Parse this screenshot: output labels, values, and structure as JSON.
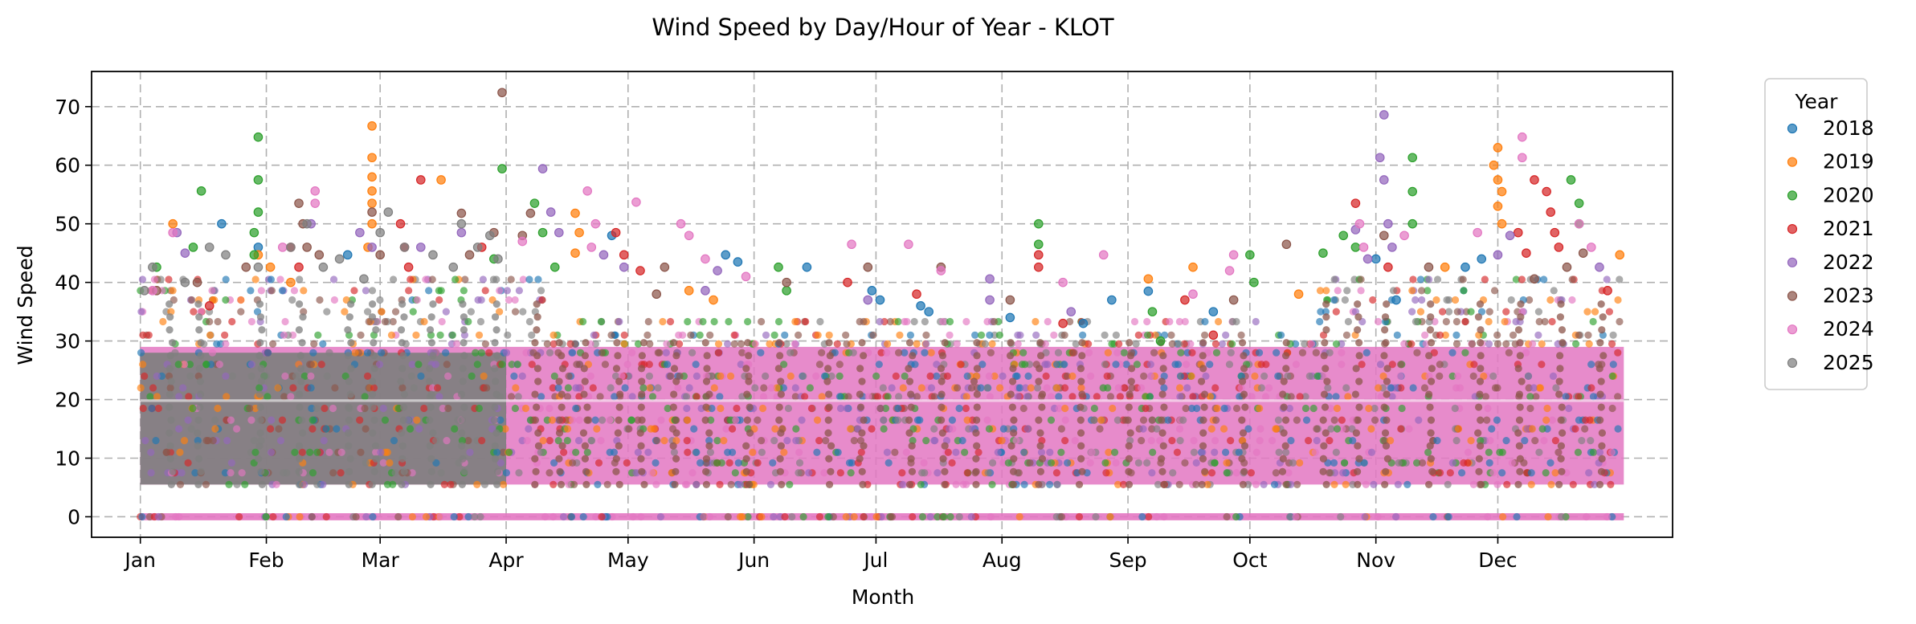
{
  "chart_data": {
    "type": "scatter",
    "title": "Wind Speed by Day/Hour of Year - KLOT",
    "xlabel": "Month",
    "ylabel": "Wind Speed",
    "x_axis": "day of year",
    "xlim": [
      -11,
      378
    ],
    "ylim": [
      -3.5,
      76
    ],
    "x_ticks": [
      {
        "label": "Jan",
        "day": 1
      },
      {
        "label": "Feb",
        "day": 32
      },
      {
        "label": "Mar",
        "day": 60
      },
      {
        "label": "Apr",
        "day": 91
      },
      {
        "label": "May",
        "day": 121
      },
      {
        "label": "Jun",
        "day": 152
      },
      {
        "label": "Jul",
        "day": 182
      },
      {
        "label": "Aug",
        "day": 213
      },
      {
        "label": "Sep",
        "day": 244
      },
      {
        "label": "Oct",
        "day": 274
      },
      {
        "label": "Nov",
        "day": 305
      },
      {
        "label": "Dec",
        "day": 335
      }
    ],
    "y_ticks": [
      0,
      10,
      20,
      30,
      40,
      50,
      60,
      70
    ],
    "grid": true,
    "legend": {
      "title": "Year",
      "position": "outside-right"
    },
    "series": [
      {
        "name": "2018",
        "color": "#1f77b4",
        "points": [
          [
            145,
            44.7
          ],
          [
            148,
            43.5
          ],
          [
            165,
            42.6
          ],
          [
            181,
            38.6
          ],
          [
            183,
            37.0
          ],
          [
            193,
            36.0
          ],
          [
            195,
            35.0
          ],
          [
            240,
            37.0
          ],
          [
            249,
            38.5
          ],
          [
            310,
            37.0
          ],
          [
            305,
            44.0
          ],
          [
            327,
            42.6
          ],
          [
            331,
            44.0
          ],
          [
            52,
            44.7
          ],
          [
            21,
            50.0
          ],
          [
            30,
            46.0
          ],
          [
            117,
            48.0
          ],
          [
            265,
            35.0
          ],
          [
            233,
            33.0
          ],
          [
            215,
            34.0
          ]
        ]
      },
      {
        "name": "2019",
        "color": "#ff7f0e",
        "points": [
          [
            58,
            66.7
          ],
          [
            58,
            61.3
          ],
          [
            58,
            58.0
          ],
          [
            58,
            55.6
          ],
          [
            58,
            53.5
          ],
          [
            58,
            50.0
          ],
          [
            57,
            46.0
          ],
          [
            108,
            51.8
          ],
          [
            109,
            48.5
          ],
          [
            108,
            45.0
          ],
          [
            335,
            63.0
          ],
          [
            334,
            60.0
          ],
          [
            335,
            57.5
          ],
          [
            336,
            55.5
          ],
          [
            335,
            53.0
          ],
          [
            336,
            50.0
          ],
          [
            75,
            57.5
          ],
          [
            9,
            50.0
          ],
          [
            30,
            44.7
          ],
          [
            33,
            42.6
          ],
          [
            38,
            40.0
          ],
          [
            249,
            40.6
          ],
          [
            260,
            42.6
          ],
          [
            365,
            44.7
          ],
          [
            136,
            38.6
          ],
          [
            142,
            37.0
          ],
          [
            322,
            42.6
          ],
          [
            286,
            38.0
          ]
        ]
      },
      {
        "name": "2020",
        "color": "#2ca02c",
        "points": [
          [
            16,
            55.6
          ],
          [
            30,
            64.8
          ],
          [
            30,
            57.5
          ],
          [
            30,
            52.0
          ],
          [
            29,
            48.5
          ],
          [
            29,
            44.7
          ],
          [
            90,
            59.4
          ],
          [
            88,
            44.0
          ],
          [
            98,
            53.5
          ],
          [
            100,
            48.5
          ],
          [
            222,
            50.0
          ],
          [
            222,
            46.5
          ],
          [
            158,
            42.6
          ],
          [
            160,
            38.6
          ],
          [
            314,
            61.3
          ],
          [
            314,
            55.5
          ],
          [
            314,
            50.0
          ],
          [
            353,
            57.5
          ],
          [
            355,
            53.5
          ],
          [
            355,
            50.0
          ],
          [
            5,
            42.6
          ],
          [
            292,
            45.0
          ],
          [
            297,
            48.0
          ],
          [
            300,
            46.0
          ],
          [
            274,
            44.7
          ],
          [
            275,
            40.0
          ],
          [
            250,
            35.0
          ],
          [
            252,
            30.0
          ],
          [
            103,
            42.6
          ],
          [
            14,
            46.0
          ]
        ]
      },
      {
        "name": "2021",
        "color": "#d62728",
        "points": [
          [
            65,
            50.0
          ],
          [
            70,
            57.5
          ],
          [
            66,
            46.0
          ],
          [
            67,
            42.6
          ],
          [
            118,
            48.5
          ],
          [
            120,
            44.7
          ],
          [
            124,
            42.0
          ],
          [
            222,
            44.7
          ],
          [
            222,
            42.6
          ],
          [
            344,
            57.5
          ],
          [
            347,
            55.5
          ],
          [
            348,
            52.0
          ],
          [
            349,
            48.5
          ],
          [
            350,
            46.0
          ],
          [
            300,
            53.5
          ],
          [
            340,
            48.5
          ],
          [
            342,
            45.0
          ],
          [
            308,
            42.6
          ],
          [
            38,
            46.0
          ],
          [
            40,
            42.6
          ],
          [
            175,
            40.0
          ],
          [
            192,
            38.0
          ],
          [
            228,
            33.0
          ],
          [
            258,
            37.0
          ],
          [
            265,
            31.0
          ],
          [
            362,
            38.6
          ],
          [
            18,
            36.0
          ],
          [
            85,
            46.0
          ]
        ]
      },
      {
        "name": "2022",
        "color": "#9467bd",
        "points": [
          [
            307,
            68.6
          ],
          [
            306,
            61.3
          ],
          [
            307,
            57.5
          ],
          [
            308,
            50.0
          ],
          [
            309,
            46.0
          ],
          [
            100,
            59.4
          ],
          [
            102,
            52.0
          ],
          [
            104,
            48.5
          ],
          [
            10,
            48.5
          ],
          [
            12,
            45.0
          ],
          [
            55,
            48.5
          ],
          [
            58,
            46.0
          ],
          [
            115,
            44.7
          ],
          [
            120,
            42.6
          ],
          [
            140,
            38.6
          ],
          [
            143,
            42.0
          ],
          [
            210,
            40.6
          ],
          [
            210,
            37.0
          ],
          [
            300,
            49.0
          ],
          [
            303,
            44.0
          ],
          [
            335,
            44.7
          ],
          [
            338,
            48.0
          ],
          [
            43,
            50.0
          ],
          [
            70,
            46.0
          ],
          [
            80,
            48.5
          ],
          [
            180,
            37.0
          ],
          [
            360,
            42.6
          ],
          [
            230,
            35.0
          ]
        ]
      },
      {
        "name": "2023",
        "color": "#8c564b",
        "points": [
          [
            90,
            72.4
          ],
          [
            80,
            51.8
          ],
          [
            88,
            48.5
          ],
          [
            40,
            53.5
          ],
          [
            41,
            50.0
          ],
          [
            42,
            46.0
          ],
          [
            45,
            44.7
          ],
          [
            27,
            42.6
          ],
          [
            82,
            44.7
          ],
          [
            97,
            51.8
          ],
          [
            95,
            48.0
          ],
          [
            130,
            42.6
          ],
          [
            180,
            42.6
          ],
          [
            198,
            42.6
          ],
          [
            215,
            37.0
          ],
          [
            283,
            46.5
          ],
          [
            307,
            48.0
          ],
          [
            318,
            42.6
          ],
          [
            352,
            42.6
          ],
          [
            356,
            45.0
          ],
          [
            58,
            52.0
          ],
          [
            60,
            44.7
          ],
          [
            5,
            38.6
          ],
          [
            15,
            40.0
          ],
          [
            270,
            37.0
          ],
          [
            160,
            40.0
          ],
          [
            128,
            38.0
          ],
          [
            344,
            40.6
          ]
        ]
      },
      {
        "name": "2024",
        "color": "#e377c2",
        "points": [
          [
            341,
            64.8
          ],
          [
            341,
            61.3
          ],
          [
            111,
            55.6
          ],
          [
            123,
            53.7
          ],
          [
            134,
            50.0
          ],
          [
            136,
            48.0
          ],
          [
            44,
            55.6
          ],
          [
            44,
            53.5
          ],
          [
            113,
            50.0
          ],
          [
            112,
            46.0
          ],
          [
            176,
            46.5
          ],
          [
            238,
            44.7
          ],
          [
            301,
            50.0
          ],
          [
            302,
            46.0
          ],
          [
            312,
            48.0
          ],
          [
            330,
            48.5
          ],
          [
            355,
            50.0
          ],
          [
            358,
            46.0
          ],
          [
            9,
            48.5
          ],
          [
            4,
            38.6
          ],
          [
            270,
            44.7
          ],
          [
            269,
            42.0
          ],
          [
            190,
            46.5
          ],
          [
            198,
            42.0
          ],
          [
            140,
            44.0
          ],
          [
            150,
            41.0
          ],
          [
            228,
            40.0
          ],
          [
            260,
            38.0
          ],
          [
            36,
            46.0
          ],
          [
            95,
            47.0
          ]
        ]
      },
      {
        "name": "2025",
        "color": "#7f7f7f",
        "points": [
          [
            62,
            52.0
          ],
          [
            60,
            48.5
          ],
          [
            80,
            50.0
          ],
          [
            87,
            48.0
          ],
          [
            42,
            50.0
          ],
          [
            38,
            46.0
          ],
          [
            4,
            42.6
          ],
          [
            2,
            38.6
          ],
          [
            12,
            40.0
          ],
          [
            22,
            44.7
          ],
          [
            30,
            42.6
          ],
          [
            50,
            44.0
          ],
          [
            66,
            46.0
          ],
          [
            73,
            44.7
          ],
          [
            78,
            42.6
          ],
          [
            84,
            46.0
          ],
          [
            89,
            44.0
          ],
          [
            56,
            40.6
          ],
          [
            46,
            42.6
          ],
          [
            18,
            46.0
          ]
        ]
      }
    ]
  }
}
